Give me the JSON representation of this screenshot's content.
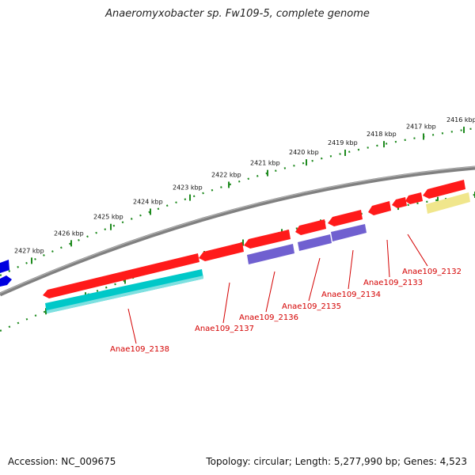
{
  "title": "Anaeromyxobacter sp. Fw109-5, complete genome",
  "footer": {
    "accession": "Accession: NC_009675",
    "summary": "Topology: circular; Length: 5,277,990 bp; Genes: 4,523"
  },
  "ruler": {
    "unit": "kbp",
    "labels": [
      "2416 kbp",
      "2417 kbp",
      "2418 kbp",
      "2419 kbp",
      "2420 kbp",
      "2421 kbp",
      "2422 kbp",
      "2423 kbp",
      "2424 kbp",
      "2425 kbp",
      "2426 kbp",
      "2427 kbp"
    ]
  },
  "genes": [
    {
      "name": "Anae109_2132"
    },
    {
      "name": "Anae109_2133"
    },
    {
      "name": "Anae109_2134"
    },
    {
      "name": "Anae109_2135"
    },
    {
      "name": "Anae109_2136"
    },
    {
      "name": "Anae109_2137"
    },
    {
      "name": "Anae109_2138"
    }
  ],
  "colors": {
    "backbone": "#808080",
    "ruler": "#1e8a1e",
    "cds_forward": "#ff1a1a",
    "cds_reverse_blue": "#7060d0",
    "cds_cyan": "#00c8c8",
    "cds_yellow": "#f0e68c",
    "cds_edge_blue": "#0000e0",
    "label": "#d40000"
  }
}
